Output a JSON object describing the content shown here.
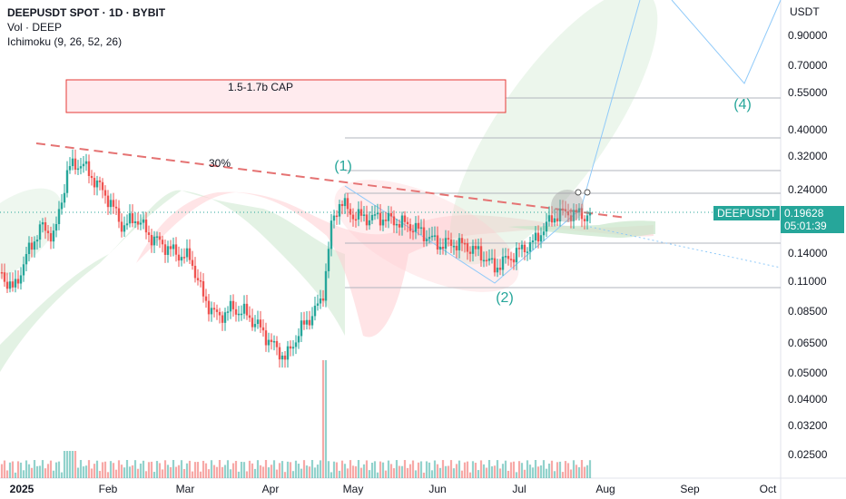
{
  "legend": {
    "title": "DEEPUSDT SPOT · 1D · BYBIT",
    "volume": "Vol · DEEP",
    "indicator": "Ichimoku (9, 26, 52, 26)"
  },
  "price_axis": {
    "unit": "USDT",
    "ticks": [
      "0.90000",
      "0.70000",
      "0.55000",
      "0.40000",
      "0.32000",
      "0.24000",
      "0.14000",
      "0.11000",
      "0.08500",
      "0.06500",
      "0.05000",
      "0.04000",
      "0.03200",
      "0.02500"
    ]
  },
  "time_axis": {
    "ticks": [
      "2025",
      "Feb",
      "Mar",
      "Apr",
      "May",
      "Jun",
      "Jul",
      "Aug",
      "Sep",
      "Oct"
    ]
  },
  "annotations": {
    "cap_box": "1.5-1.7b CAP",
    "pct": "30%",
    "wave1": "(1)",
    "wave2": "(2)",
    "wave4": "(4)"
  },
  "last_price": {
    "symbol": "DEEPUSDT",
    "price": "0.19628",
    "countdown": "05:01:39"
  },
  "colors": {
    "up": "#26a69a",
    "down": "#ef5350",
    "cloud_bull": "#a5d6a7",
    "cloud_bear": "#ef9a9a",
    "projection": "#90caf9"
  },
  "chart_data": {
    "type": "candlestick",
    "scale": "log",
    "ylim": [
      0.022,
      1.1
    ],
    "series": [
      {
        "name": "price",
        "x": [
          "2025-01-01",
          "2025-01-15",
          "2025-01-20",
          "2025-02-01",
          "2025-02-15",
          "2025-03-01",
          "2025-03-15",
          "2025-04-01",
          "2025-04-08",
          "2025-04-20",
          "2025-04-27",
          "2025-05-10",
          "2025-05-25",
          "2025-06-10",
          "2025-06-22",
          "2025-07-01",
          "2025-07-15",
          "2025-07-25"
        ],
        "close": [
          0.11,
          0.16,
          0.33,
          0.25,
          0.17,
          0.14,
          0.086,
          0.075,
          0.054,
          0.08,
          0.24,
          0.18,
          0.18,
          0.15,
          0.11,
          0.15,
          0.2,
          0.196
        ]
      }
    ],
    "levels": [
      0.55,
      0.37,
      0.29,
      0.22,
      0.155,
      0.11
    ]
  }
}
